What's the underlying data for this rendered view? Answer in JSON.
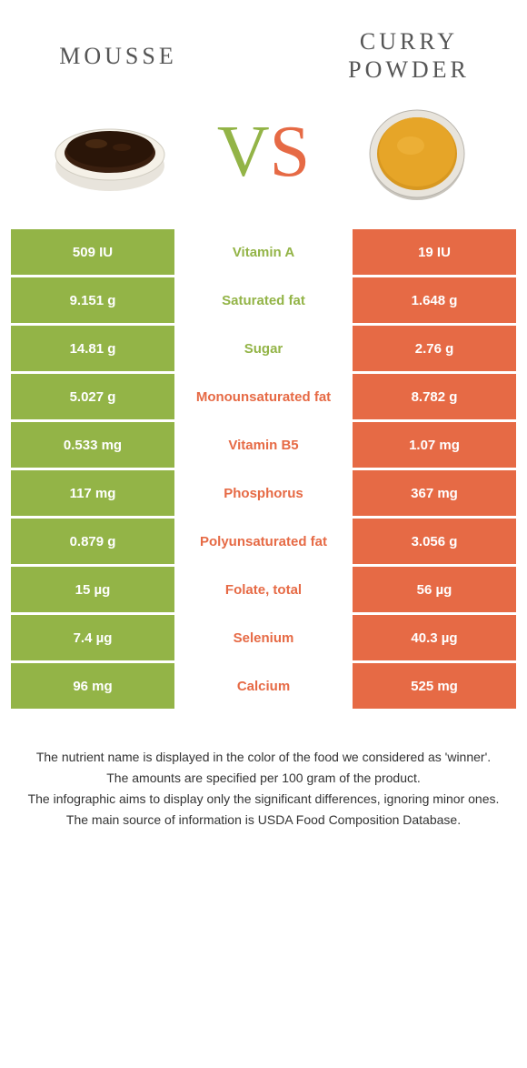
{
  "colors": {
    "green": "#93b447",
    "orange": "#e66a45",
    "text_gray": "#555555",
    "label_fontsize": 15,
    "title_fontsize": 26
  },
  "header": {
    "left_title": "Mousse",
    "right_title": "Curry powder",
    "vs_v": "V",
    "vs_s": "S"
  },
  "rows": [
    {
      "left": "509 IU",
      "label": "Vitamin A",
      "right": "19 IU",
      "label_color": "#93b447"
    },
    {
      "left": "9.151 g",
      "label": "Saturated fat",
      "right": "1.648 g",
      "label_color": "#93b447"
    },
    {
      "left": "14.81 g",
      "label": "Sugar",
      "right": "2.76 g",
      "label_color": "#93b447"
    },
    {
      "left": "5.027 g",
      "label": "Monounsaturated fat",
      "right": "8.782 g",
      "label_color": "#e66a45"
    },
    {
      "left": "0.533 mg",
      "label": "Vitamin B5",
      "right": "1.07 mg",
      "label_color": "#e66a45"
    },
    {
      "left": "117 mg",
      "label": "Phosphorus",
      "right": "367 mg",
      "label_color": "#e66a45"
    },
    {
      "left": "0.879 g",
      "label": "Polyunsaturated fat",
      "right": "3.056 g",
      "label_color": "#e66a45"
    },
    {
      "left": "15 µg",
      "label": "Folate, total",
      "right": "56 µg",
      "label_color": "#e66a45"
    },
    {
      "left": "7.4 µg",
      "label": "Selenium",
      "right": "40.3 µg",
      "label_color": "#e66a45"
    },
    {
      "left": "96 mg",
      "label": "Calcium",
      "right": "525 mg",
      "label_color": "#e66a45"
    }
  ],
  "footer": {
    "line1": "The nutrient name is displayed in the color of the food we considered as 'winner'.",
    "line2": "The amounts are specified per 100 gram of the product.",
    "line3": "The infographic aims to display only the significant differences, ignoring minor ones.",
    "line4": "The main source of information is USDA Food Composition Database."
  }
}
